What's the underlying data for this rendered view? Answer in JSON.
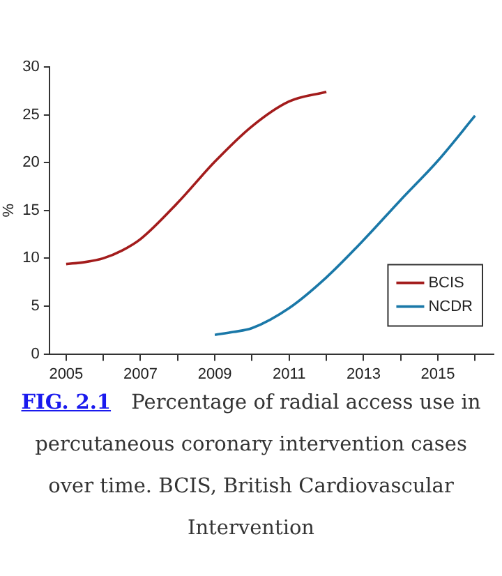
{
  "chart_data": {
    "type": "line",
    "ylabel": "%",
    "xlim": [
      2004.55,
      2016.5
    ],
    "xticks": [
      2005,
      {
        "value": 2006,
        "label": null
      },
      2007,
      {
        "value": 2008,
        "label": null
      },
      2009,
      {
        "value": 2010,
        "label": null
      },
      2011,
      {
        "value": 2012,
        "label": null
      },
      2013,
      {
        "value": 2014,
        "label": null
      },
      2015,
      {
        "value": 2016,
        "label": null
      }
    ],
    "ylim": [
      0,
      30
    ],
    "yticks": [
      0,
      5,
      10,
      15,
      20,
      25,
      30
    ],
    "series": [
      {
        "name": "BCIS",
        "color": "#a31c1c",
        "x": [
          2005,
          2005.5,
          2006,
          2006.5,
          2007,
          2008,
          2009,
          2010,
          2011,
          2012
        ],
        "values": [
          9.4,
          9.6,
          10.0,
          10.8,
          12.0,
          15.8,
          20.1,
          23.8,
          26.4,
          27.4
        ]
      },
      {
        "name": "NCDR",
        "color": "#1a78a8",
        "x": [
          2009,
          2009.5,
          2010,
          2011,
          2012,
          2013,
          2014,
          2015,
          2016
        ],
        "values": [
          2.0,
          2.3,
          2.7,
          4.8,
          8.0,
          11.9,
          16.1,
          20.2,
          24.9
        ]
      }
    ],
    "grid": false,
    "legend": "bottom right",
    "marker": "none",
    "line_style": "solid",
    "annotations": [
      "FIG. 2.1",
      "Percentage of radial access use in percutaneous coronary intervention cases over time. BCIS, British Cardiovascular Intervention"
    ]
  }
}
